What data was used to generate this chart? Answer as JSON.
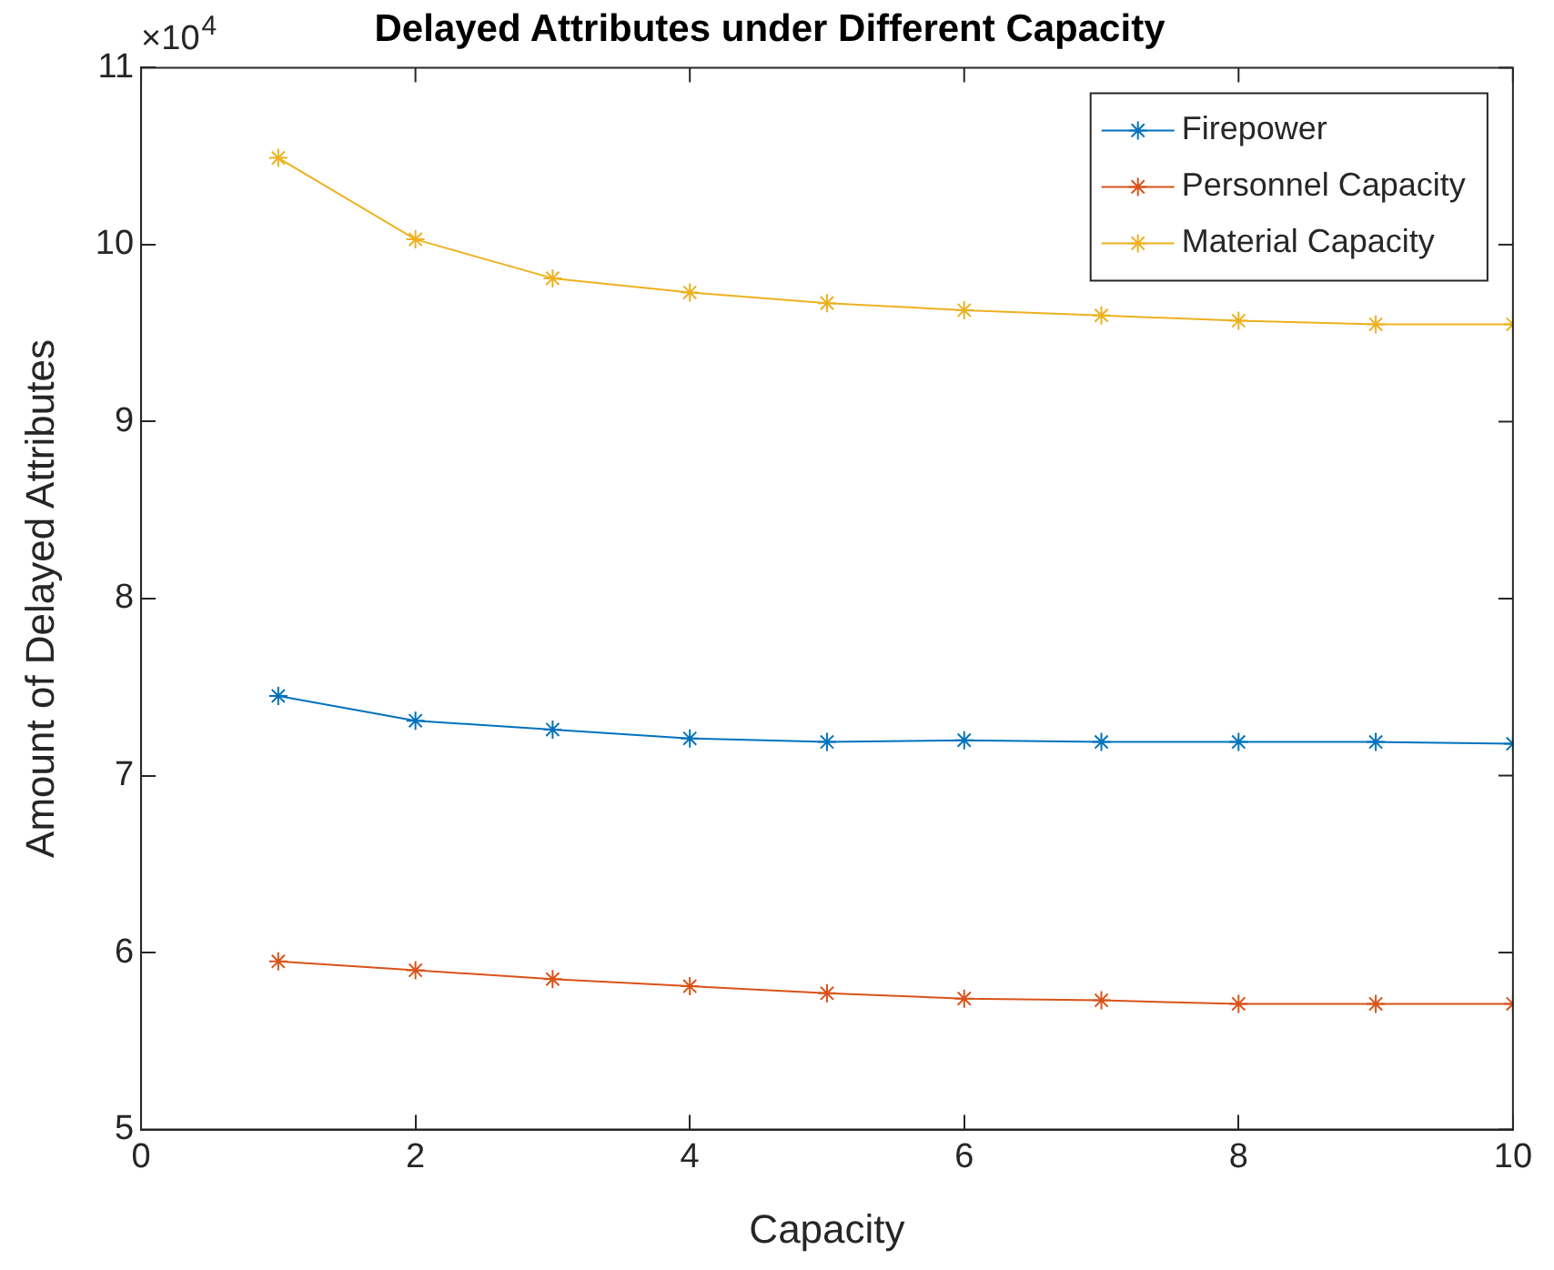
{
  "chart_data": {
    "type": "line",
    "title": "Delayed Attributes under Different Capacity",
    "xlabel": "Capacity",
    "ylabel": "Amount of Delayed Attributes",
    "annotations": [
      "×10$^{4}$"
    ],
    "x": [
      1,
      2,
      3,
      4,
      5,
      6,
      7,
      8,
      9,
      10
    ],
    "series": [
      {
        "name": "Firepower",
        "color": "#0072bd",
        "values": [
          7.45,
          7.31,
          7.26,
          7.21,
          7.19,
          7.2,
          7.19,
          7.19,
          7.19,
          7.18
        ]
      },
      {
        "name": "Personnel Capacity",
        "color": "#d95319",
        "values": [
          5.95,
          5.9,
          5.85,
          5.81,
          5.77,
          5.74,
          5.73,
          5.71,
          5.71,
          5.71
        ]
      },
      {
        "name": "Material Capacity",
        "color": "#edb120",
        "values": [
          10.49,
          10.03,
          9.81,
          9.73,
          9.67,
          9.63,
          9.6,
          9.57,
          9.55,
          9.55
        ]
      }
    ],
    "xlim": [
      0,
      10
    ],
    "xticks": [
      0,
      2,
      4,
      6,
      8,
      10
    ],
    "ylim": [
      5,
      11
    ],
    "yticks": [
      5,
      6,
      7,
      8,
      9,
      10,
      11
    ],
    "grid": false,
    "legend": "top right",
    "marker": "cross",
    "line_style": "solid"
  }
}
